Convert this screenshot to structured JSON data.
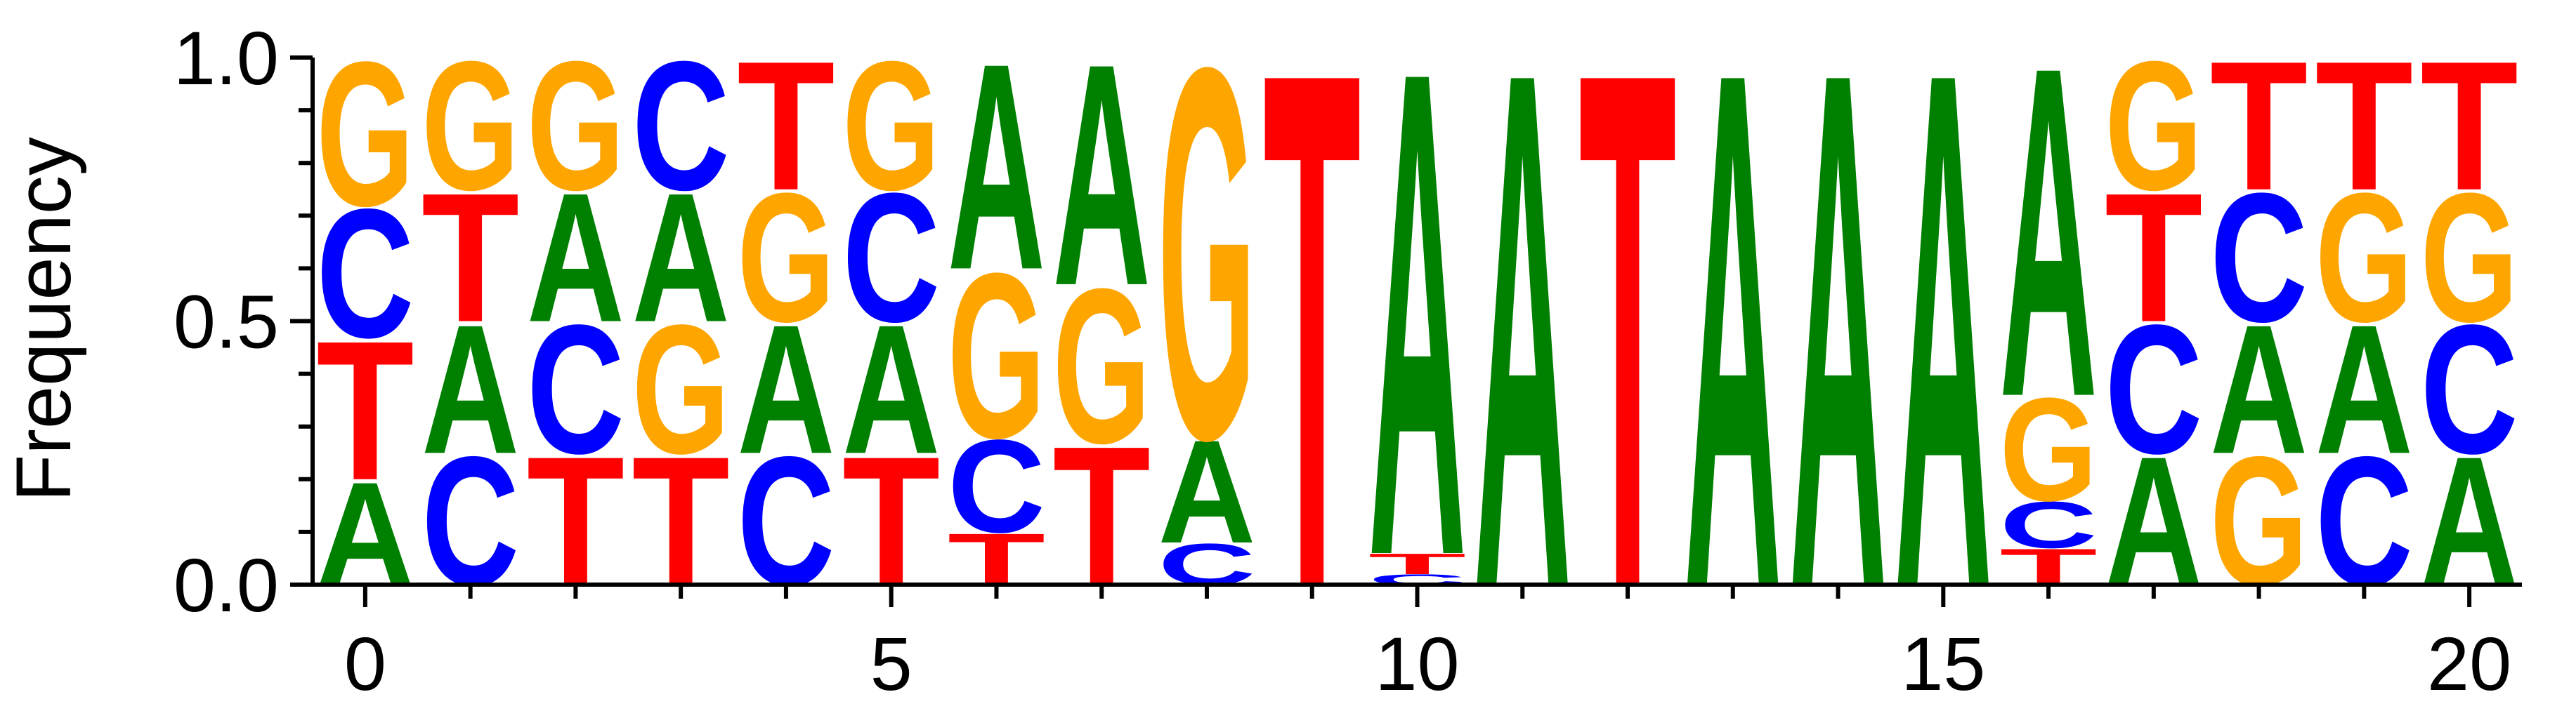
{
  "chart_data": {
    "type": "sequence-logo",
    "ylabel": "Frequency",
    "ylim": [
      0,
      1
    ],
    "xlim": [
      -0.5,
      20.5
    ],
    "xticks": [
      0,
      5,
      10,
      15,
      20
    ],
    "yticks": [
      0.0,
      0.5,
      1.0
    ],
    "ytick_labels": [
      "0.0",
      "0.5",
      "1.0"
    ],
    "colors": {
      "A": "#008000",
      "C": "#0000ff",
      "G": "#ffa500",
      "T": "#ff0000"
    },
    "positions": [
      {
        "pos": 0,
        "stack": [
          [
            "A",
            0.2
          ],
          [
            "T",
            0.27
          ],
          [
            "C",
            0.25
          ],
          [
            "G",
            0.28
          ]
        ]
      },
      {
        "pos": 1,
        "stack": [
          [
            "C",
            0.25
          ],
          [
            "A",
            0.25
          ],
          [
            "T",
            0.25
          ],
          [
            "G",
            0.25
          ]
        ]
      },
      {
        "pos": 2,
        "stack": [
          [
            "T",
            0.25
          ],
          [
            "C",
            0.25
          ],
          [
            "A",
            0.25
          ],
          [
            "G",
            0.25
          ]
        ]
      },
      {
        "pos": 3,
        "stack": [
          [
            "T",
            0.25
          ],
          [
            "G",
            0.25
          ],
          [
            "A",
            0.25
          ],
          [
            "C",
            0.25
          ]
        ]
      },
      {
        "pos": 4,
        "stack": [
          [
            "C",
            0.25
          ],
          [
            "A",
            0.25
          ],
          [
            "G",
            0.25
          ],
          [
            "T",
            0.25
          ]
        ]
      },
      {
        "pos": 5,
        "stack": [
          [
            "T",
            0.25
          ],
          [
            "A",
            0.25
          ],
          [
            "C",
            0.25
          ],
          [
            "G",
            0.25
          ]
        ]
      },
      {
        "pos": 6,
        "stack": [
          [
            "T",
            0.1
          ],
          [
            "C",
            0.18
          ],
          [
            "G",
            0.32
          ],
          [
            "A",
            0.4
          ]
        ]
      },
      {
        "pos": 7,
        "stack": [
          [
            "T",
            0.27
          ],
          [
            "G",
            0.3
          ],
          [
            "A",
            0.43
          ]
        ]
      },
      {
        "pos": 8,
        "stack": [
          [
            "C",
            0.08
          ],
          [
            "A",
            0.2
          ],
          [
            "G",
            0.72
          ]
        ]
      },
      {
        "pos": 9,
        "stack": [
          [
            "T",
            1.0
          ]
        ]
      },
      {
        "pos": 10,
        "stack": [
          [
            "C",
            0.02
          ],
          [
            "T",
            0.04
          ],
          [
            "A",
            0.94
          ]
        ]
      },
      {
        "pos": 11,
        "stack": [
          [
            "A",
            1.0
          ]
        ]
      },
      {
        "pos": 12,
        "stack": [
          [
            "T",
            1.0
          ]
        ]
      },
      {
        "pos": 13,
        "stack": [
          [
            "A",
            1.0
          ]
        ]
      },
      {
        "pos": 14,
        "stack": [
          [
            "A",
            1.0
          ]
        ]
      },
      {
        "pos": 15,
        "stack": [
          [
            "A",
            1.0
          ]
        ]
      },
      {
        "pos": 16,
        "stack": [
          [
            "T",
            0.07
          ],
          [
            "C",
            0.09
          ],
          [
            "G",
            0.2
          ],
          [
            "A",
            0.64
          ]
        ]
      },
      {
        "pos": 17,
        "stack": [
          [
            "A",
            0.25
          ],
          [
            "C",
            0.25
          ],
          [
            "T",
            0.25
          ],
          [
            "G",
            0.25
          ]
        ]
      },
      {
        "pos": 18,
        "stack": [
          [
            "G",
            0.25
          ],
          [
            "A",
            0.25
          ],
          [
            "C",
            0.25
          ],
          [
            "T",
            0.25
          ]
        ]
      },
      {
        "pos": 19,
        "stack": [
          [
            "C",
            0.25
          ],
          [
            "A",
            0.25
          ],
          [
            "G",
            0.25
          ],
          [
            "T",
            0.25
          ]
        ]
      },
      {
        "pos": 20,
        "stack": [
          [
            "A",
            0.25
          ],
          [
            "C",
            0.25
          ],
          [
            "G",
            0.25
          ],
          [
            "T",
            0.25
          ]
        ]
      }
    ]
  }
}
